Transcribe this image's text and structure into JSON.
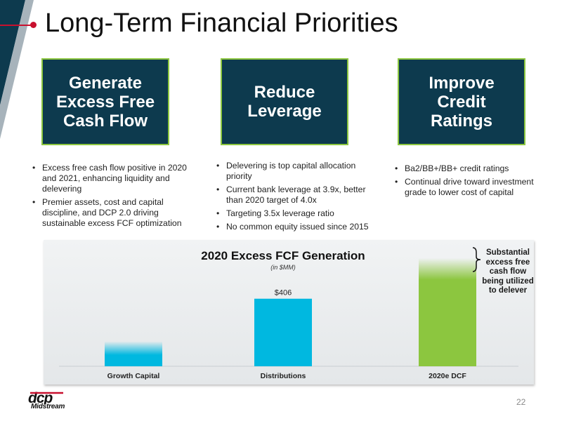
{
  "slide": {
    "title": "Long-Term Financial Priorities",
    "page_number": "22",
    "colors": {
      "navy": "#0d3a4e",
      "green": "#8cc63f",
      "cyan": "#00b8e0",
      "red": "#c8102e"
    }
  },
  "priorities": [
    {
      "heading": "Generate\nExcess Free\nCash Flow",
      "bullets": [
        "Excess free cash flow positive in 2020 and 2021, enhancing liquidity and delevering",
        "Premier assets, cost and capital discipline, and DCP 2.0 driving sustainable excess FCF optimization"
      ]
    },
    {
      "heading": "Reduce\nLeverage",
      "bullets": [
        "Delevering is top capital allocation priority",
        "Current bank leverage at 3.9x, better than 2020 target of 4.0x",
        "Targeting 3.5x leverage ratio",
        "No common equity issued since 2015"
      ]
    },
    {
      "heading": "Improve\nCredit\nRatings",
      "bullets": [
        "Ba2/BB+/BB+ credit ratings",
        "Continual drive toward investment grade to lower cost of capital"
      ]
    }
  ],
  "chart_data": {
    "type": "bar",
    "title": "2020 Excess FCF Generation",
    "subtitle": "(in $MM)",
    "categories": [
      "Growth Capital",
      "Distributions",
      "2020e DCF"
    ],
    "values": [
      150,
      406,
      650
    ],
    "data_labels": [
      "",
      "$406",
      ""
    ],
    "colors": [
      "#00b8e0",
      "#00b8e0",
      "#8cc63f"
    ],
    "ylim": [
      0,
      700
    ],
    "grid": false,
    "annotation": "Substantial excess free cash flow being utilized to delever"
  },
  "logo": {
    "text": "Midstream"
  }
}
